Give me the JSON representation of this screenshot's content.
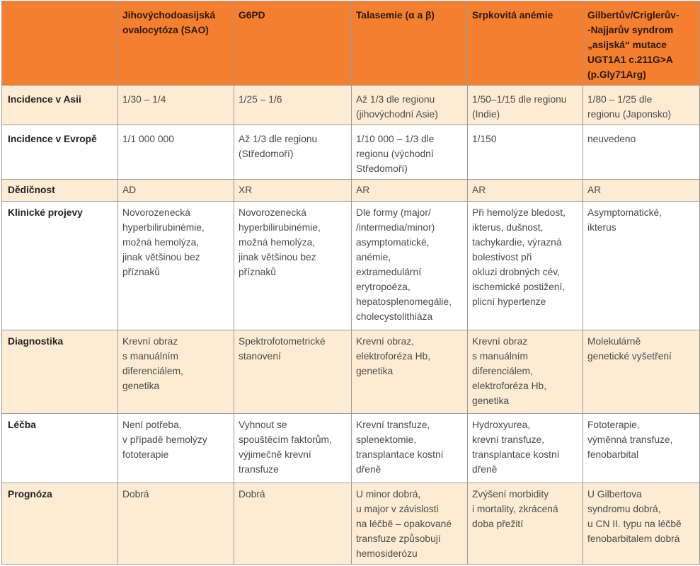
{
  "headers": [
    "",
    "Jihovýchodoasijská\novalocytóza (SAO)",
    "G6PD",
    "Talasemie (α a β)",
    "Srpkovitá anémie",
    "Gilbertův/Criglerův-\n-Najjarův syndrom\n„asijská“ mutace\nUGT1A1 c.211G>A\n(p.Gly71Arg)"
  ],
  "rows": [
    {
      "label": "Incidence v Asii",
      "cells": [
        "1/30 – 1/4",
        "1/25 – 1/6",
        "Až 1/3 dle regionu\n(jihovýchodní Asie)",
        "1/50–1/15 dle regionu\n(Indie)",
        "1/80 – 1/25 dle\nregionu (Japonsko)"
      ]
    },
    {
      "label": "Incidence v Evropě",
      "cells": [
        "1/1 000 000",
        "Až 1/3 dle regionu\n(Středomoří)",
        "1/10 000 – 1/3 dle\nregionu (východní\nStředomoří)",
        "1/150",
        "neuvedeno"
      ]
    },
    {
      "label": "Dědičnost",
      "cells": [
        "AD",
        "XR",
        "AR",
        "AR",
        "AR"
      ]
    },
    {
      "label": "Klinické projevy",
      "cells": [
        "Novorozenecká\nhyperbilirubinémie,\nmožná hemolýza,\njinak většinou bez\npříznaků",
        "Novorozenecká\nhyperbilirubinémie,\nmožná hemolýza,\njinak většinou bez\npříznaků",
        "Dle formy (major/\n/intermedia/minor)\nasymptomatické,\nanémie,\nextramedulární\nerytropoéza,\nhepatosplenomegálie,\ncholecystolithiáza",
        "Při hemolýze bledost,\nikterus, dušnost,\ntachykardie, výrazná\nbolestivost při\nokluzi drobných cév,\nischemické postižení,\nplicní hypertenze",
        "Asymptomatické,\nikterus"
      ]
    },
    {
      "label": "Diagnostika",
      "cells": [
        "Krevní obraz\ns manuálním\ndiferenciálem,\ngenetika",
        "Spektrofotometrické\nstanovení",
        "Krevní obraz,\nelektroforéza Hb,\ngenetika",
        "Krevní obraz\ns manuálním\ndiferenciálem,\nelektroforéza Hb,\ngenetika",
        "Molekulárně\ngenetické vyšetření"
      ]
    },
    {
      "label": "Léčba",
      "cells": [
        "Není potřeba,\nv případě hemolýzy\nfototerapie",
        "Vyhnout se\nspouštěcím faktorům,\nvýjimečně krevní\ntransfuze",
        "Krevní transfuze,\nsplenektomie,\ntransplantace kostní\ndřeně",
        "Hydroxyurea,\nkrevní transfuze,\ntransplantace kostní\ndřeně",
        "Fototerapie,\nvýměnná transfuze,\nfenobarbital"
      ]
    },
    {
      "label": "Prognóza",
      "cells": [
        "Dobrá",
        "Dobrá",
        "U minor dobrá,\nu major v závislosti\nna léčbě – opakované\ntransfuze způsobují\nhemosiderózu",
        "Zvýšení morbidity\ni mortality, zkrácená\ndoba přežití",
        "U Gilbertova\nsyndromu dobrá,\nu CN II. typu na léčbě\nfenobarbitalem dobrá"
      ]
    }
  ]
}
